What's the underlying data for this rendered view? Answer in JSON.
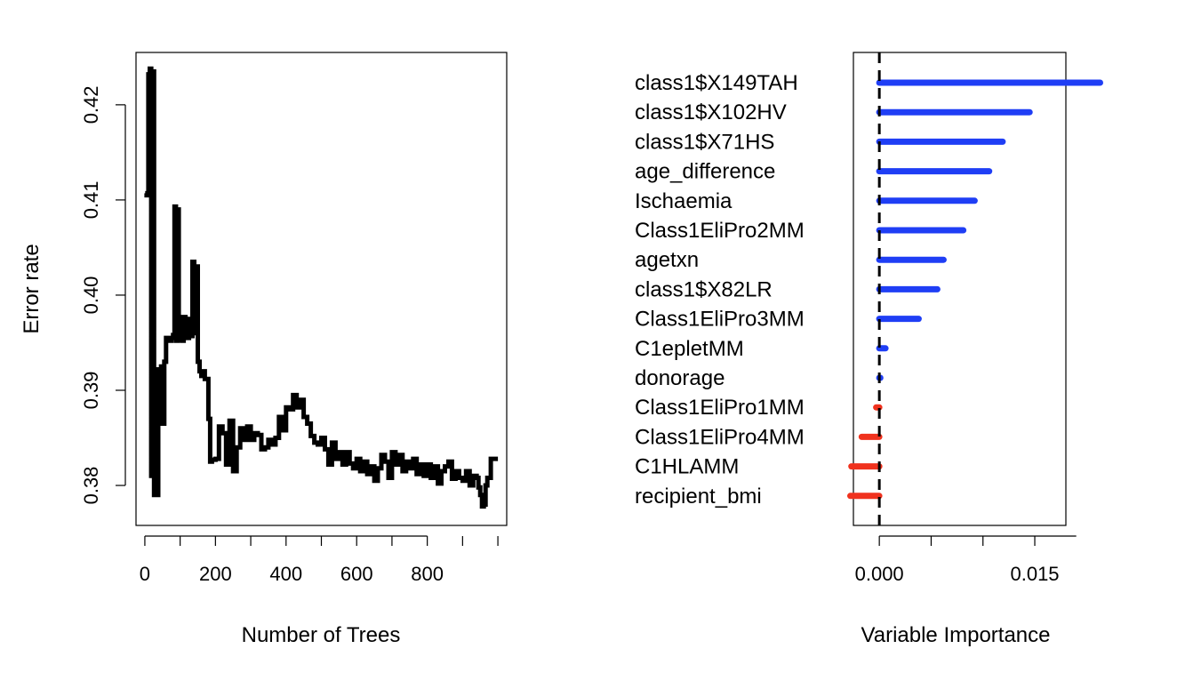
{
  "chart_data": [
    {
      "type": "line",
      "xlabel": "Number of Trees",
      "ylabel": "Error rate",
      "xlim": [
        -25,
        1025
      ],
      "ylim": [
        0.3758,
        0.4255
      ],
      "x_ticks": [
        0,
        200,
        400,
        600,
        800
      ],
      "x_tick_labels": [
        "0",
        "200",
        "400",
        "600",
        "800"
      ],
      "y_ticks": [
        0.38,
        0.39,
        0.4,
        0.41,
        0.42
      ],
      "y_tick_labels": [
        "0.38",
        "0.39",
        "0.40",
        "0.41",
        "0.42"
      ],
      "series": [
        {
          "color": "#000000",
          "x": [
            1,
            5,
            10,
            14,
            18,
            22,
            26,
            30,
            34,
            38,
            42,
            46,
            50,
            55,
            60,
            65,
            70,
            75,
            80,
            84,
            88,
            92,
            96,
            100,
            105,
            110,
            115,
            120,
            125,
            130,
            135,
            140,
            145,
            150,
            155,
            160,
            165,
            170,
            175,
            180,
            185,
            190,
            200,
            210,
            220,
            230,
            240,
            250,
            260,
            270,
            280,
            290,
            300,
            310,
            320,
            330,
            340,
            350,
            360,
            370,
            380,
            390,
            400,
            410,
            420,
            430,
            440,
            450,
            460,
            470,
            480,
            490,
            500,
            510,
            520,
            530,
            540,
            550,
            560,
            570,
            580,
            590,
            600,
            610,
            620,
            630,
            640,
            650,
            660,
            670,
            680,
            690,
            700,
            710,
            720,
            730,
            740,
            750,
            760,
            770,
            780,
            790,
            800,
            810,
            820,
            830,
            840,
            850,
            860,
            870,
            880,
            890,
            900,
            910,
            920,
            930,
            940,
            945,
            950,
            955,
            960,
            965,
            970,
            980,
            990,
            1000
          ],
          "y": [
            0.4107,
            0.4105,
            0.4232,
            0.4238,
            0.381,
            0.4235,
            0.379,
            0.3922,
            0.379,
            0.392,
            0.3865,
            0.3925,
            0.3865,
            0.393,
            0.3955,
            0.3955,
            0.3952,
            0.3955,
            0.3958,
            0.4093,
            0.3952,
            0.409,
            0.3953,
            0.3977,
            0.3952,
            0.3977,
            0.3962,
            0.3955,
            0.3975,
            0.3957,
            0.4035,
            0.396,
            0.403,
            0.393,
            0.392,
            0.3915,
            0.392,
            0.3912,
            0.3912,
            0.387,
            0.3825,
            0.3827,
            0.3828,
            0.3862,
            0.3855,
            0.3822,
            0.3868,
            0.3815,
            0.384,
            0.386,
            0.3848,
            0.3862,
            0.3848,
            0.3855,
            0.3853,
            0.3838,
            0.384,
            0.3848,
            0.3843,
            0.385,
            0.3872,
            0.3858,
            0.3882,
            0.388,
            0.3895,
            0.3882,
            0.389,
            0.3872,
            0.3865,
            0.3852,
            0.3845,
            0.3843,
            0.385,
            0.3838,
            0.3822,
            0.3845,
            0.3828,
            0.3835,
            0.3822,
            0.3835,
            0.3823,
            0.3818,
            0.3828,
            0.3815,
            0.3825,
            0.3812,
            0.382,
            0.3805,
            0.3818,
            0.3832,
            0.3825,
            0.3808,
            0.3835,
            0.3822,
            0.3832,
            0.3815,
            0.3825,
            0.3818,
            0.3828,
            0.3812,
            0.3822,
            0.381,
            0.3822,
            0.3808,
            0.382,
            0.3802,
            0.3815,
            0.382,
            0.3825,
            0.3807,
            0.3815,
            0.3808,
            0.3805,
            0.3815,
            0.38,
            0.381,
            0.3808,
            0.3798,
            0.379,
            0.3778,
            0.378,
            0.38,
            0.3808,
            0.3828,
            0.3828,
            0.3828
          ]
        }
      ]
    },
    {
      "type": "dotchart",
      "xlabel": "Variable Importance",
      "ylabel": "",
      "xlim": [
        -0.0025,
        0.018
      ],
      "x_ticks": [
        0.0,
        0.005,
        0.01,
        0.015,
        0.02
      ],
      "x_tick_labels": [
        "0.000",
        "",
        "",
        "0.015",
        ""
      ],
      "reference_line": {
        "x": 0.0,
        "style": "dashed"
      },
      "categories": [
        "class1$X149TAH",
        "class1$X102HV",
        "class1$X71HS",
        "age_difference",
        "Ischaemia",
        "Class1EliPro2MM",
        "agetxn",
        "class1$X82LR",
        "Class1EliPro3MM",
        "C1epletMM",
        "donorage",
        "Class1EliPro1MM",
        "Class1EliPro4MM",
        "C1HLAMM",
        "recipient_bmi"
      ],
      "values": [
        0.0213,
        0.0145,
        0.0119,
        0.0106,
        0.0092,
        0.0081,
        0.0062,
        0.0056,
        0.0038,
        0.0006,
        0.0001,
        -0.0003,
        -0.0017,
        -0.0027,
        -0.0028
      ],
      "positive_color": "#1f3ef5",
      "negative_color": "#f0321e"
    }
  ]
}
